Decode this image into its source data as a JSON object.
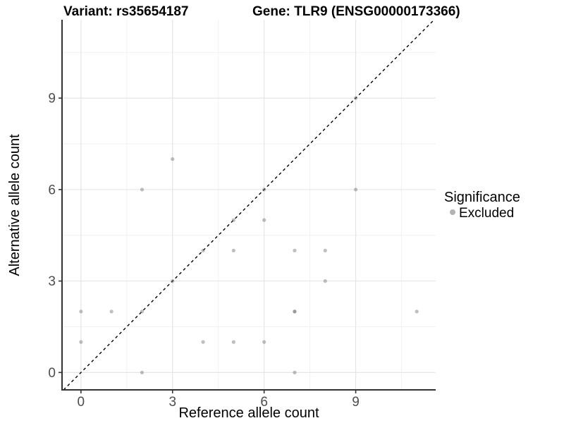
{
  "titles": {
    "variant": "Variant: rs35654187",
    "gene": "Gene: TLR9 (ENSG00000173366)"
  },
  "chart_data": {
    "type": "scatter",
    "xlabel": "Reference allele count",
    "ylabel": "Alternative allele count",
    "xlim": [
      -0.62,
      11.62
    ],
    "ylim": [
      -0.57,
      11.57
    ],
    "x_ticks": [
      0,
      3,
      6,
      9
    ],
    "y_ticks": [
      0,
      3,
      6,
      9
    ],
    "x_minor_ticks": [
      1.5,
      4.5,
      7.5,
      10.5
    ],
    "y_minor_ticks": [
      1.5,
      4.5,
      7.5,
      10.5
    ],
    "grid": "on",
    "identity_line": {
      "slope": 1,
      "intercept": 0,
      "style": "dashed",
      "color": "#000000"
    },
    "points": [
      [
        0,
        1
      ],
      [
        0,
        2
      ],
      [
        1,
        2
      ],
      [
        2,
        0
      ],
      [
        2,
        2
      ],
      [
        2,
        6
      ],
      [
        3,
        3
      ],
      [
        3,
        7
      ],
      [
        4,
        1
      ],
      [
        4,
        4
      ],
      [
        5,
        1
      ],
      [
        5,
        4
      ],
      [
        5,
        5
      ],
      [
        6,
        1
      ],
      [
        6,
        5
      ],
      [
        6,
        6
      ],
      [
        7,
        0
      ],
      [
        7,
        2
      ],
      [
        7,
        2
      ],
      [
        7,
        4
      ],
      [
        8,
        3
      ],
      [
        8,
        4
      ],
      [
        9,
        6
      ],
      [
        9,
        9
      ],
      [
        11,
        2
      ]
    ],
    "point_color": "#666666",
    "point_opacity": 0.42,
    "colors": {
      "grid_major": "#e3e3e3",
      "grid_minor": "#f0f0f0",
      "axis_line": "#333333"
    },
    "legend": {
      "title": "Significance",
      "position": "right",
      "items": [
        {
          "label": "Excluded",
          "color": "#b3b3b3"
        }
      ]
    }
  }
}
